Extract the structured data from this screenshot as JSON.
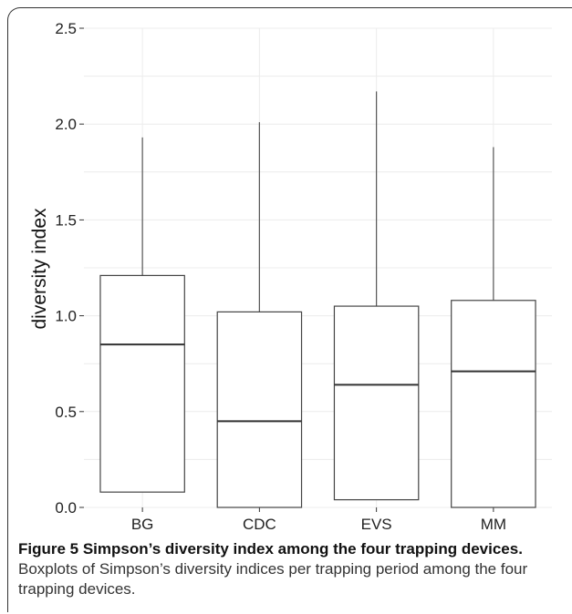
{
  "chart_data": {
    "type": "boxplot",
    "categories": [
      "BG",
      "CDC",
      "EVS",
      "MM"
    ],
    "ylabel": "diversity index",
    "ylim": [
      0,
      2.5
    ],
    "yticks": [
      "0.0",
      "0.5",
      "1.0",
      "1.5",
      "2.0",
      "2.5"
    ],
    "boxes": [
      {
        "category": "BG",
        "min": 0.08,
        "q1": 0.08,
        "median": 0.85,
        "q3": 1.21,
        "max": 1.93
      },
      {
        "category": "CDC",
        "min": 0.0,
        "q1": 0.0,
        "median": 0.45,
        "q3": 1.02,
        "max": 2.01
      },
      {
        "category": "EVS",
        "min": 0.04,
        "q1": 0.04,
        "median": 0.64,
        "q3": 1.05,
        "max": 2.17
      },
      {
        "category": "MM",
        "min": 0.0,
        "q1": 0.0,
        "median": 0.71,
        "q3": 1.08,
        "max": 1.88
      }
    ],
    "grid": true
  },
  "caption": {
    "label": "Figure 5 Simpson’s diversity index among the four trapping devices.",
    "text": " Boxplots of Simpson’s diversity indices per trapping period among the four trapping devices."
  }
}
